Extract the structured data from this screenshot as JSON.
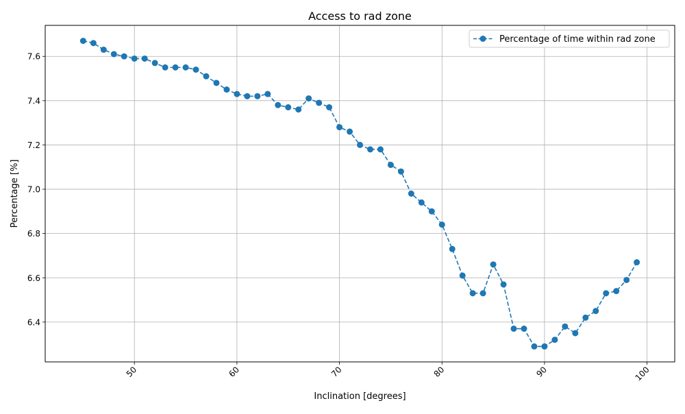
{
  "chart_data": {
    "type": "line",
    "title": "Access to rad zone",
    "xlabel": "Inclination [degrees]",
    "ylabel": "Percentage [%]",
    "xlim": [
      41.3,
      102.7
    ],
    "ylim": [
      6.22,
      7.74
    ],
    "xticks": [
      50,
      60,
      70,
      80,
      90,
      100
    ],
    "yticks": [
      6.4,
      6.6,
      6.8,
      7.0,
      7.2,
      7.4,
      7.6
    ],
    "xtick_labels": [
      "50",
      "60",
      "70",
      "80",
      "90",
      "100"
    ],
    "ytick_labels": [
      "6.4",
      "6.6",
      "6.8",
      "7.0",
      "7.2",
      "7.4",
      "7.6"
    ],
    "grid": true,
    "legend_position": "top-right",
    "line_style": "dashed",
    "marker": "circle",
    "series": [
      {
        "name": "Percentage of time within rad zone",
        "color": "#1f77b4",
        "x": [
          45,
          46,
          47,
          48,
          49,
          50,
          51,
          52,
          53,
          54,
          55,
          56,
          57,
          58,
          59,
          60,
          61,
          62,
          63,
          64,
          65,
          66,
          67,
          68,
          69,
          70,
          71,
          72,
          73,
          74,
          75,
          76,
          77,
          78,
          79,
          80,
          81,
          82,
          83,
          84,
          85,
          86,
          87,
          88,
          89,
          90,
          91,
          92,
          93,
          94,
          95,
          96,
          97,
          98,
          99
        ],
        "y": [
          7.67,
          7.66,
          7.63,
          7.61,
          7.6,
          7.59,
          7.59,
          7.57,
          7.55,
          7.55,
          7.55,
          7.54,
          7.51,
          7.48,
          7.45,
          7.43,
          7.42,
          7.42,
          7.43,
          7.38,
          7.37,
          7.36,
          7.41,
          7.39,
          7.37,
          7.28,
          7.26,
          7.2,
          7.18,
          7.18,
          7.11,
          7.08,
          6.98,
          6.94,
          6.9,
          6.84,
          6.73,
          6.61,
          6.53,
          6.53,
          6.66,
          6.57,
          6.37,
          6.37,
          6.29,
          6.29,
          6.32,
          6.38,
          6.35,
          6.42,
          6.45,
          6.53,
          6.54,
          6.59,
          6.67
        ]
      }
    ]
  }
}
